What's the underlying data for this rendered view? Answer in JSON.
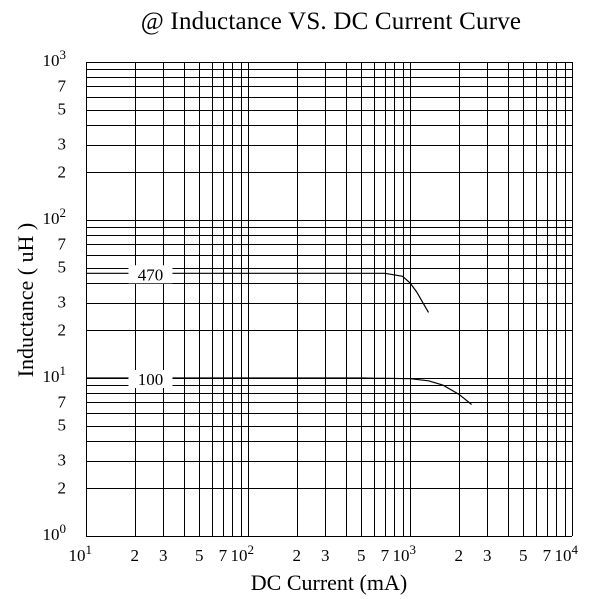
{
  "chart_data": {
    "type": "line",
    "title": "@ Inductance VS. DC Current Curve",
    "xlabel": "DC Current (mA)",
    "ylabel": "Inductance ( uH )",
    "xscale": "log",
    "yscale": "log",
    "xlim": [
      10,
      10000
    ],
    "ylim": [
      1,
      1000
    ],
    "grid": true,
    "x_ticks": [
      {
        "value": 10,
        "base": "10",
        "exp": "1"
      },
      {
        "value": 20,
        "base": "2"
      },
      {
        "value": 30,
        "base": "3"
      },
      {
        "value": 50,
        "base": "5"
      },
      {
        "value": 70,
        "base": "7"
      },
      {
        "value": 100,
        "base": "10",
        "exp": "2"
      },
      {
        "value": 200,
        "base": "2"
      },
      {
        "value": 300,
        "base": "3"
      },
      {
        "value": 500,
        "base": "5"
      },
      {
        "value": 700,
        "base": "7"
      },
      {
        "value": 1000,
        "base": "10",
        "exp": "3"
      },
      {
        "value": 2000,
        "base": "2"
      },
      {
        "value": 3000,
        "base": "3"
      },
      {
        "value": 5000,
        "base": "5"
      },
      {
        "value": 7000,
        "base": "7"
      },
      {
        "value": 10000,
        "base": "10",
        "exp": "4"
      }
    ],
    "y_ticks": [
      {
        "value": 1,
        "base": "10",
        "exp": "0"
      },
      {
        "value": 2,
        "base": "2"
      },
      {
        "value": 3,
        "base": "3"
      },
      {
        "value": 5,
        "base": "5"
      },
      {
        "value": 7,
        "base": "7"
      },
      {
        "value": 10,
        "base": "10",
        "exp": "1"
      },
      {
        "value": 20,
        "base": "2"
      },
      {
        "value": 30,
        "base": "3"
      },
      {
        "value": 50,
        "base": "5"
      },
      {
        "value": 70,
        "base": "7"
      },
      {
        "value": 100,
        "base": "10",
        "exp": "2"
      },
      {
        "value": 200,
        "base": "2"
      },
      {
        "value": 300,
        "base": "3"
      },
      {
        "value": 500,
        "base": "5"
      },
      {
        "value": 700,
        "base": "7"
      },
      {
        "value": 1000,
        "base": "10",
        "exp": "3"
      }
    ],
    "series": [
      {
        "name": "470",
        "x": [
          10,
          100,
          300,
          700,
          900,
          1000,
          1100,
          1200,
          1300
        ],
        "y": [
          46,
          46,
          46,
          46,
          44,
          40,
          35,
          30,
          26
        ]
      },
      {
        "name": "100",
        "x": [
          10,
          100,
          500,
          1000,
          1300,
          1600,
          2000,
          2400
        ],
        "y": [
          10,
          10,
          10,
          9.9,
          9.6,
          9.0,
          7.9,
          6.8
        ]
      }
    ]
  }
}
